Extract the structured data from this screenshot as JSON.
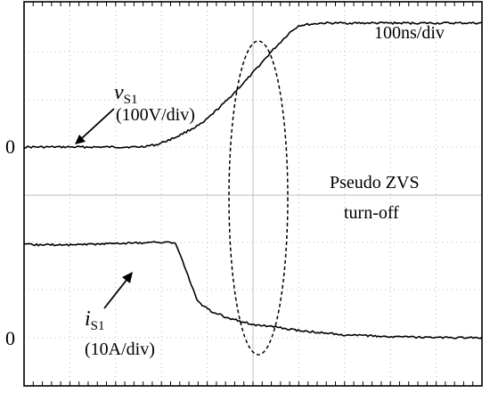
{
  "chart_data": {
    "type": "line",
    "time_scale": "100ns/div",
    "x_divisions": 10,
    "zero_label": "0",
    "annotation": {
      "line1": "Pseudo ZVS",
      "line2": "turn-off"
    },
    "series": [
      {
        "name_main": "v",
        "name_sub": "S1",
        "scale": "(100V/div)",
        "x": [
          0,
          1,
          2,
          2.5,
          2.9,
          3.3,
          3.9,
          4.4,
          4.9,
          5.4,
          5.8,
          6,
          6.5,
          7,
          8,
          9,
          10
        ],
        "values": [
          0,
          0,
          0,
          0,
          0.05,
          0.2,
          0.5,
          0.95,
          1.45,
          2.0,
          2.4,
          2.55,
          2.6,
          2.6,
          2.6,
          2.6,
          2.6
        ]
      },
      {
        "name_main": "i",
        "name_sub": "S1",
        "scale": "(10A/div)",
        "x": [
          0,
          1,
          2,
          3,
          3.3,
          3.5,
          3.8,
          4.1,
          4.5,
          5,
          5.5,
          6,
          7,
          8,
          9,
          10
        ],
        "values": [
          1.95,
          1.95,
          1.98,
          2.0,
          2.0,
          1.5,
          0.75,
          0.55,
          0.4,
          0.28,
          0.22,
          0.15,
          0.06,
          0.02,
          0.0,
          0.0
        ]
      }
    ]
  }
}
